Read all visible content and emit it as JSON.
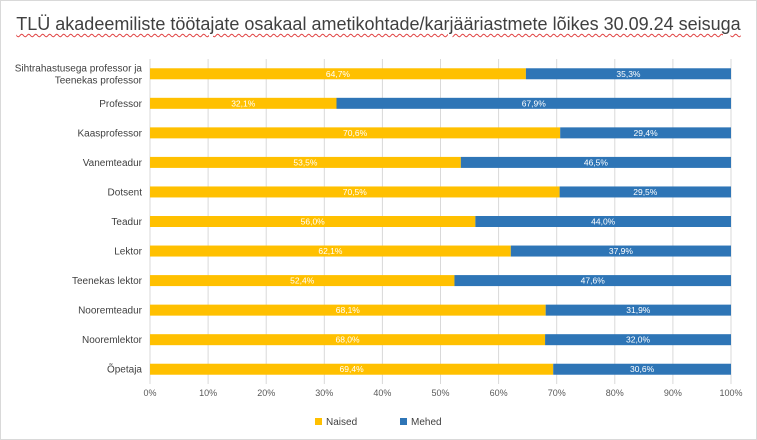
{
  "title": "TLÜ akadeemiliste töötajate osakaal ametikohtade/karjääriastmete lõikes 30.09.24 seisuga",
  "colors": {
    "naised": "#FFC000",
    "mehed": "#2E75B6",
    "grid": "#d9d9d9",
    "text": "#404040"
  },
  "chart_data": {
    "type": "bar",
    "orientation": "horizontal",
    "stacked": "percent",
    "title": "TLÜ akadeemiliste töötajate osakaal ametikohtade/karjääriastmete lõikes 30.09.24 seisuga",
    "categories": [
      [
        "Sihtrahastusega professor ja",
        "Teenekas professor"
      ],
      [
        "Professor"
      ],
      [
        "Kaasprofessor"
      ],
      [
        "Vanemteadur"
      ],
      [
        "Dotsent"
      ],
      [
        "Teadur"
      ],
      [
        "Lektor"
      ],
      [
        "Teenekas lektor"
      ],
      [
        "Nooremteadur"
      ],
      [
        "Nooremlektor"
      ],
      [
        "Õpetaja"
      ]
    ],
    "series": [
      {
        "name": "Naised",
        "color": "#FFC000",
        "values": [
          64.7,
          32.1,
          70.6,
          53.5,
          70.5,
          56.0,
          62.1,
          52.4,
          68.1,
          68.0,
          69.4
        ],
        "labels": [
          "64,7%",
          "32,1%",
          "70,6%",
          "53,5%",
          "70,5%",
          "56,0%",
          "62,1%",
          "52,4%",
          "68,1%",
          "68,0%",
          "69,4%"
        ]
      },
      {
        "name": "Mehed",
        "color": "#2E75B6",
        "values": [
          35.3,
          67.9,
          29.4,
          46.5,
          29.5,
          44.0,
          37.9,
          47.6,
          31.9,
          32.0,
          30.6
        ],
        "labels": [
          "35,3%",
          "67,9%",
          "29,4%",
          "46,5%",
          "29,5%",
          "44,0%",
          "37,9%",
          "47,6%",
          "31,9%",
          "32,0%",
          "30,6%"
        ]
      }
    ],
    "xlim": [
      0,
      100
    ],
    "xticks": [
      "0%",
      "10%",
      "20%",
      "30%",
      "40%",
      "50%",
      "60%",
      "70%",
      "80%",
      "90%",
      "100%"
    ],
    "grid": true,
    "legend": "bottom"
  }
}
